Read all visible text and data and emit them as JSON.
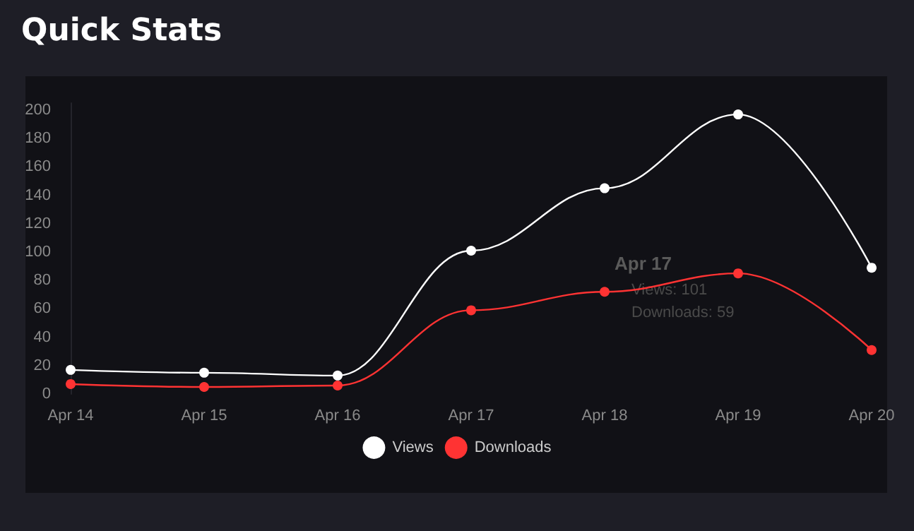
{
  "chart_data": {
    "type": "line",
    "title": "Quick Stats",
    "categories": [
      "Apr 14",
      "Apr 15",
      "Apr 16",
      "Apr 17",
      "Apr 18",
      "Apr 19",
      "Apr 20"
    ],
    "series": [
      {
        "name": "Views",
        "color": "#ffffff",
        "values": [
          17,
          15,
          13,
          101,
          145,
          197,
          89
        ]
      },
      {
        "name": "Downloads",
        "color": "#ff3333",
        "values": [
          7,
          5,
          6,
          59,
          72,
          85,
          31
        ]
      }
    ],
    "ylim": [
      0,
      205
    ],
    "yticks": [
      0,
      20,
      40,
      60,
      80,
      100,
      120,
      140,
      160,
      180,
      200
    ],
    "grid": false,
    "legend": "bottom",
    "marker": "circle",
    "line_style": "solid",
    "annotations": [
      "Apr 17",
      "Views: 101",
      "Downloads: 59"
    ]
  }
}
